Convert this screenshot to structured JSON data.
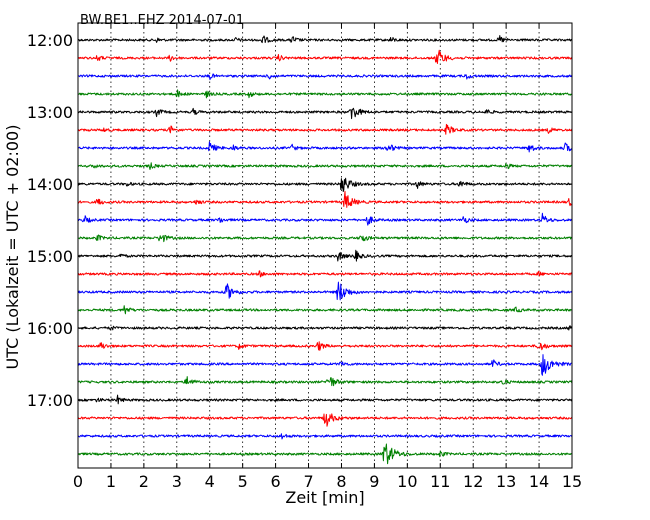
{
  "chart_data": {
    "type": "line",
    "title": "BW.BE1..EHZ 2014-07-01",
    "xlabel": "Zeit  [min]",
    "ylabel": "UTC (Lokalzeit = UTC + 02:00)",
    "xlim": [
      0,
      15
    ],
    "x_ticks": [
      "0",
      "1",
      "2",
      "3",
      "4",
      "5",
      "6",
      "7",
      "8",
      "9",
      "10",
      "11",
      "12",
      "13",
      "14",
      "15"
    ],
    "y_ticks": [
      "12:00",
      "13:00",
      "14:00",
      "15:00",
      "16:00",
      "17:00"
    ],
    "grid": "vertical dotted lines at each minute",
    "trace_colors": [
      "#000000",
      "#ff0000",
      "#0000ff",
      "#008000"
    ],
    "traces": [
      {
        "start": "12:00",
        "events": [
          [
            5.6,
            5
          ],
          [
            6.5,
            4
          ],
          [
            12.8,
            4
          ],
          [
            2.4,
            2
          ],
          [
            4.8,
            2
          ],
          [
            9.5,
            3
          ]
        ]
      },
      {
        "start": "12:15",
        "events": [
          [
            10.9,
            10
          ],
          [
            0.6,
            3
          ],
          [
            2.8,
            3
          ],
          [
            6.1,
            3
          ]
        ]
      },
      {
        "start": "12:30",
        "events": [
          [
            4.0,
            3
          ],
          [
            5.8,
            3
          ],
          [
            11.8,
            3
          ]
        ]
      },
      {
        "start": "12:45",
        "events": [
          [
            3.0,
            4
          ],
          [
            3.9,
            3
          ],
          [
            5.2,
            3
          ]
        ]
      },
      {
        "start": "13:00",
        "events": [
          [
            8.3,
            9
          ],
          [
            2.4,
            4
          ],
          [
            3.5,
            3
          ],
          [
            12.4,
            3
          ]
        ]
      },
      {
        "start": "13:15",
        "events": [
          [
            11.2,
            6
          ],
          [
            2.8,
            4
          ],
          [
            14.3,
            3
          ],
          [
            0.8,
            2
          ]
        ]
      },
      {
        "start": "13:30",
        "events": [
          [
            4.0,
            6
          ],
          [
            9.4,
            6
          ],
          [
            13.7,
            5
          ],
          [
            14.8,
            5
          ],
          [
            6.5,
            3
          ],
          [
            4.7,
            3
          ]
        ]
      },
      {
        "start": "13:45",
        "events": [
          [
            2.2,
            3
          ],
          [
            13.0,
            3
          ],
          [
            0.5,
            2
          ]
        ]
      },
      {
        "start": "14:00",
        "events": [
          [
            8.0,
            11
          ],
          [
            10.3,
            4
          ],
          [
            11.6,
            4
          ],
          [
            1.5,
            2
          ]
        ]
      },
      {
        "start": "14:15",
        "events": [
          [
            8.1,
            10
          ],
          [
            0.6,
            4
          ],
          [
            14.9,
            4
          ],
          [
            3.6,
            3
          ]
        ]
      },
      {
        "start": "14:30",
        "events": [
          [
            14.1,
            6
          ],
          [
            8.8,
            5
          ],
          [
            11.7,
            4
          ],
          [
            0.2,
            4
          ],
          [
            4.3,
            3
          ]
        ]
      },
      {
        "start": "14:45",
        "events": [
          [
            2.5,
            6
          ],
          [
            8.6,
            5
          ],
          [
            0.6,
            3
          ]
        ]
      },
      {
        "start": "15:00",
        "events": [
          [
            8.4,
            6
          ],
          [
            7.9,
            5
          ],
          [
            1.3,
            2
          ]
        ]
      },
      {
        "start": "15:15",
        "events": [
          [
            5.5,
            3
          ],
          [
            14.0,
            2
          ]
        ]
      },
      {
        "start": "15:30",
        "events": [
          [
            7.9,
            12
          ],
          [
            4.5,
            9
          ]
        ]
      },
      {
        "start": "15:45",
        "events": [
          [
            1.4,
            5
          ],
          [
            13.3,
            3
          ]
        ]
      },
      {
        "start": "16:00",
        "events": [
          [
            1.0,
            2
          ],
          [
            14.9,
            2
          ]
        ]
      },
      {
        "start": "16:15",
        "events": [
          [
            14.0,
            6
          ],
          [
            7.3,
            5
          ],
          [
            0.7,
            4
          ],
          [
            4.9,
            3
          ]
        ]
      },
      {
        "start": "16:30",
        "events": [
          [
            14.1,
            13
          ],
          [
            12.6,
            4
          ],
          [
            8.0,
            3
          ]
        ]
      },
      {
        "start": "16:45",
        "events": [
          [
            7.6,
            8
          ],
          [
            3.3,
            6
          ],
          [
            12.9,
            3
          ]
        ]
      },
      {
        "start": "17:00",
        "events": [
          [
            1.2,
            4
          ],
          [
            0.6,
            2
          ]
        ]
      },
      {
        "start": "17:15",
        "events": [
          [
            7.5,
            10
          ]
        ]
      },
      {
        "start": "17:30",
        "events": [
          [
            6.2,
            3
          ]
        ]
      },
      {
        "start": "17:45",
        "events": [
          [
            9.3,
            14
          ],
          [
            11.0,
            3
          ]
        ]
      }
    ]
  }
}
